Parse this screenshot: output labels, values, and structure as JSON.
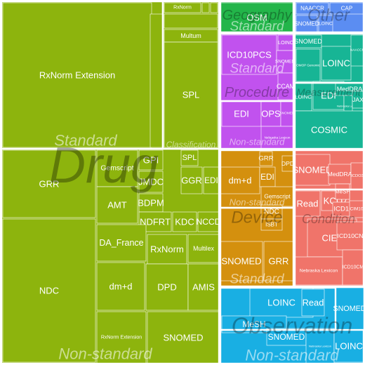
{
  "chart_data": {
    "type": "treemap",
    "domain_colors": {
      "Drug": "#8db40d",
      "Geography": "#23b54a",
      "Other": "#5b8df2",
      "Procedure": "#c152ee",
      "Measurement": "#17b595",
      "Device": "#d4900e",
      "Condition": "#f0746a",
      "Observation": "#19afe3"
    },
    "domains": [
      {
        "name": "Drug",
        "groups": [
          {
            "class": "Standard",
            "vocabularies": [
              {
                "name": "RxNorm Extension",
                "value": 8925
              },
              {
                "name": "RxNorm",
                "value": 221
              },
              {
                "name": "",
                "value": 29
              },
              {
                "name": "",
                "value": 18
              },
              {
                "name": "",
                "value": 39
              },
              {
                "name": "",
                "value": 13
              },
              {
                "name": "Multum",
                "value": 21
              }
            ]
          },
          {
            "class": "Classification",
            "vocabularies": [
              {
                "name": "SPL",
                "value": 2236
              }
            ]
          },
          {
            "class": "Non-standard",
            "vocabularies": [
              {
                "name": "GRR",
                "value": 1292
              },
              {
                "name": "NDC",
                "value": 2632
              },
              {
                "name": "Gemscript",
                "value": 282
              },
              {
                "name": "GPI",
                "value": 162
              },
              {
                "name": "SPL",
                "value": 146
              },
              {
                "name": "JMDC",
                "value": 233
              },
              {
                "name": "GGR",
                "value": 197
              },
              {
                "name": "EDI",
                "value": 145
              },
              {
                "name": "AMT",
                "value": 420
              },
              {
                "name": "BDPM",
                "value": 293
              },
              {
                "name": "NDFRT",
                "value": 297
              },
              {
                "name": "KDC",
                "value": 249
              },
              {
                "name": "NCCD",
                "value": 173
              },
              {
                "name": "DA_France",
                "value": 596
              },
              {
                "name": "RxNorm",
                "value": 522
              },
              {
                "name": "Multilex",
                "value": 375
              },
              {
                "name": "dm+d",
                "value": 554
              },
              {
                "name": "DPD",
                "value": 563
              },
              {
                "name": "AMIS",
                "value": 382
              },
              {
                "name": "RxNorm Extension",
                "value": 604
              },
              {
                "name": "SNOMED",
                "value": 462
              }
            ]
          }
        ]
      },
      {
        "name": "Geography",
        "groups": [
          {
            "class": "Standard",
            "vocabularies": [
              {
                "name": "OSM",
                "value": 383
              }
            ]
          }
        ]
      },
      {
        "name": "Other",
        "groups": [
          {
            "class": "",
            "vocabularies": [
              {
                "name": "NAACCR",
                "value": 72
              },
              {
                "name": "CAP",
                "value": 131
              },
              {
                "name": "SNOMED",
                "value": 71
              },
              {
                "name": "LOINC",
                "value": 57
              }
            ]
          }
        ]
      },
      {
        "name": "Procedure",
        "groups": [
          {
            "class": "Standard",
            "vocabularies": [
              {
                "name": "ICD10PCS",
                "value": 582
              },
              {
                "name": "LOINC",
                "value": 77
              },
              {
                "name": "SNOMED",
                "value": 116
              },
              {
                "name": "CCAM",
                "value": 55
              }
            ]
          },
          {
            "class": "Non-standard",
            "vocabularies": [
              {
                "name": "EDI",
                "value": 545
              },
              {
                "name": "OPS",
                "value": 232
              },
              {
                "name": "SNOMED",
                "value": 115
              },
              {
                "name": "Nebraska Lexicon",
                "value": 144
              }
            ]
          }
        ]
      },
      {
        "name": "Measurement",
        "groups": [
          {
            "class": "Standard",
            "vocabularies": [
              {
                "name": "SNOMED",
                "value": 113
              },
              {
                "name": "LOINC",
                "value": 374
              },
              {
                "name": "OMOP Genomic",
                "value": 108
              },
              {
                "name": "NAACCR",
                "value": 105
              }
            ]
          },
          {
            "class": "Non-standard",
            "vocabularies": [
              {
                "name": "LOINC",
                "value": 179
              },
              {
                "name": "EDI",
                "value": 136
              },
              {
                "name": "MedDRA",
                "value": 46
              },
              {
                "name": "Nebraska Lexicon",
                "value": 31
              },
              {
                "name": "JAX",
                "value": 59
              },
              {
                "name": "COSMIC",
                "value": 749
              }
            ]
          }
        ]
      },
      {
        "name": "Device",
        "groups": [
          {
            "class": "Standard",
            "vocabularies": [
              {
                "name": "dm+d",
                "value": 431
              },
              {
                "name": "SNOMED",
                "value": 455
              },
              {
                "name": "GRR",
                "value": 258
              }
            ]
          },
          {
            "class": "Non-standard",
            "vocabularies": [
              {
                "name": "GRR",
                "value": 80
              },
              {
                "name": "EDI",
                "value": 121
              },
              {
                "name": "DPD",
                "value": 60
              },
              {
                "name": "Gemscript",
                "value": 230
              },
              {
                "name": "NDC",
                "value": 79
              },
              {
                "name": "ISBT",
                "value": 69
              }
            ]
          }
        ]
      },
      {
        "name": "Condition",
        "groups": [
          {
            "class": "Standard",
            "vocabularies": [
              {
                "name": "SNOMED",
                "value": 392
              },
              {
                "name": "MedDRA",
                "value": 70
              },
              {
                "name": "ICDO3",
                "value": 78
              }
            ]
          },
          {
            "class": "Non-standard",
            "vocabularies": [
              {
                "name": "Read",
                "value": 209
              },
              {
                "name": "KCD7",
                "value": 151
              },
              {
                "name": "ICD10",
                "value": 109
              },
              {
                "name": "MeSH",
                "value": 90
              },
              {
                "name": "CIM10",
                "value": 107
              },
              {
                "name": "CIEL",
                "value": 347
              },
              {
                "name": "ICD10CN",
                "value": 151
              },
              {
                "name": "Nebraska Lexicon",
                "value": 318
              },
              {
                "name": "ICD10CM",
                "value": 332
              }
            ]
          }
        ]
      },
      {
        "name": "Observation",
        "groups": [
          {
            "class": "Standard",
            "vocabularies": [
              {
                "name": "LOINC",
                "value": 493
              },
              {
                "name": "Read",
                "value": 82
              },
              {
                "name": "MeSH",
                "value": 1226
              }
            ]
          },
          {
            "class": "Non-standard",
            "vocabularies": [
              {
                "name": "SNOMED",
                "value": 376
              },
              {
                "name": "Nebraska Lexicon",
                "value": 318
              },
              {
                "name": "LOINC",
                "value": 286
              },
              {
                "name": "SNOMED",
                "value": 263
              }
            ]
          }
        ]
      }
    ]
  }
}
